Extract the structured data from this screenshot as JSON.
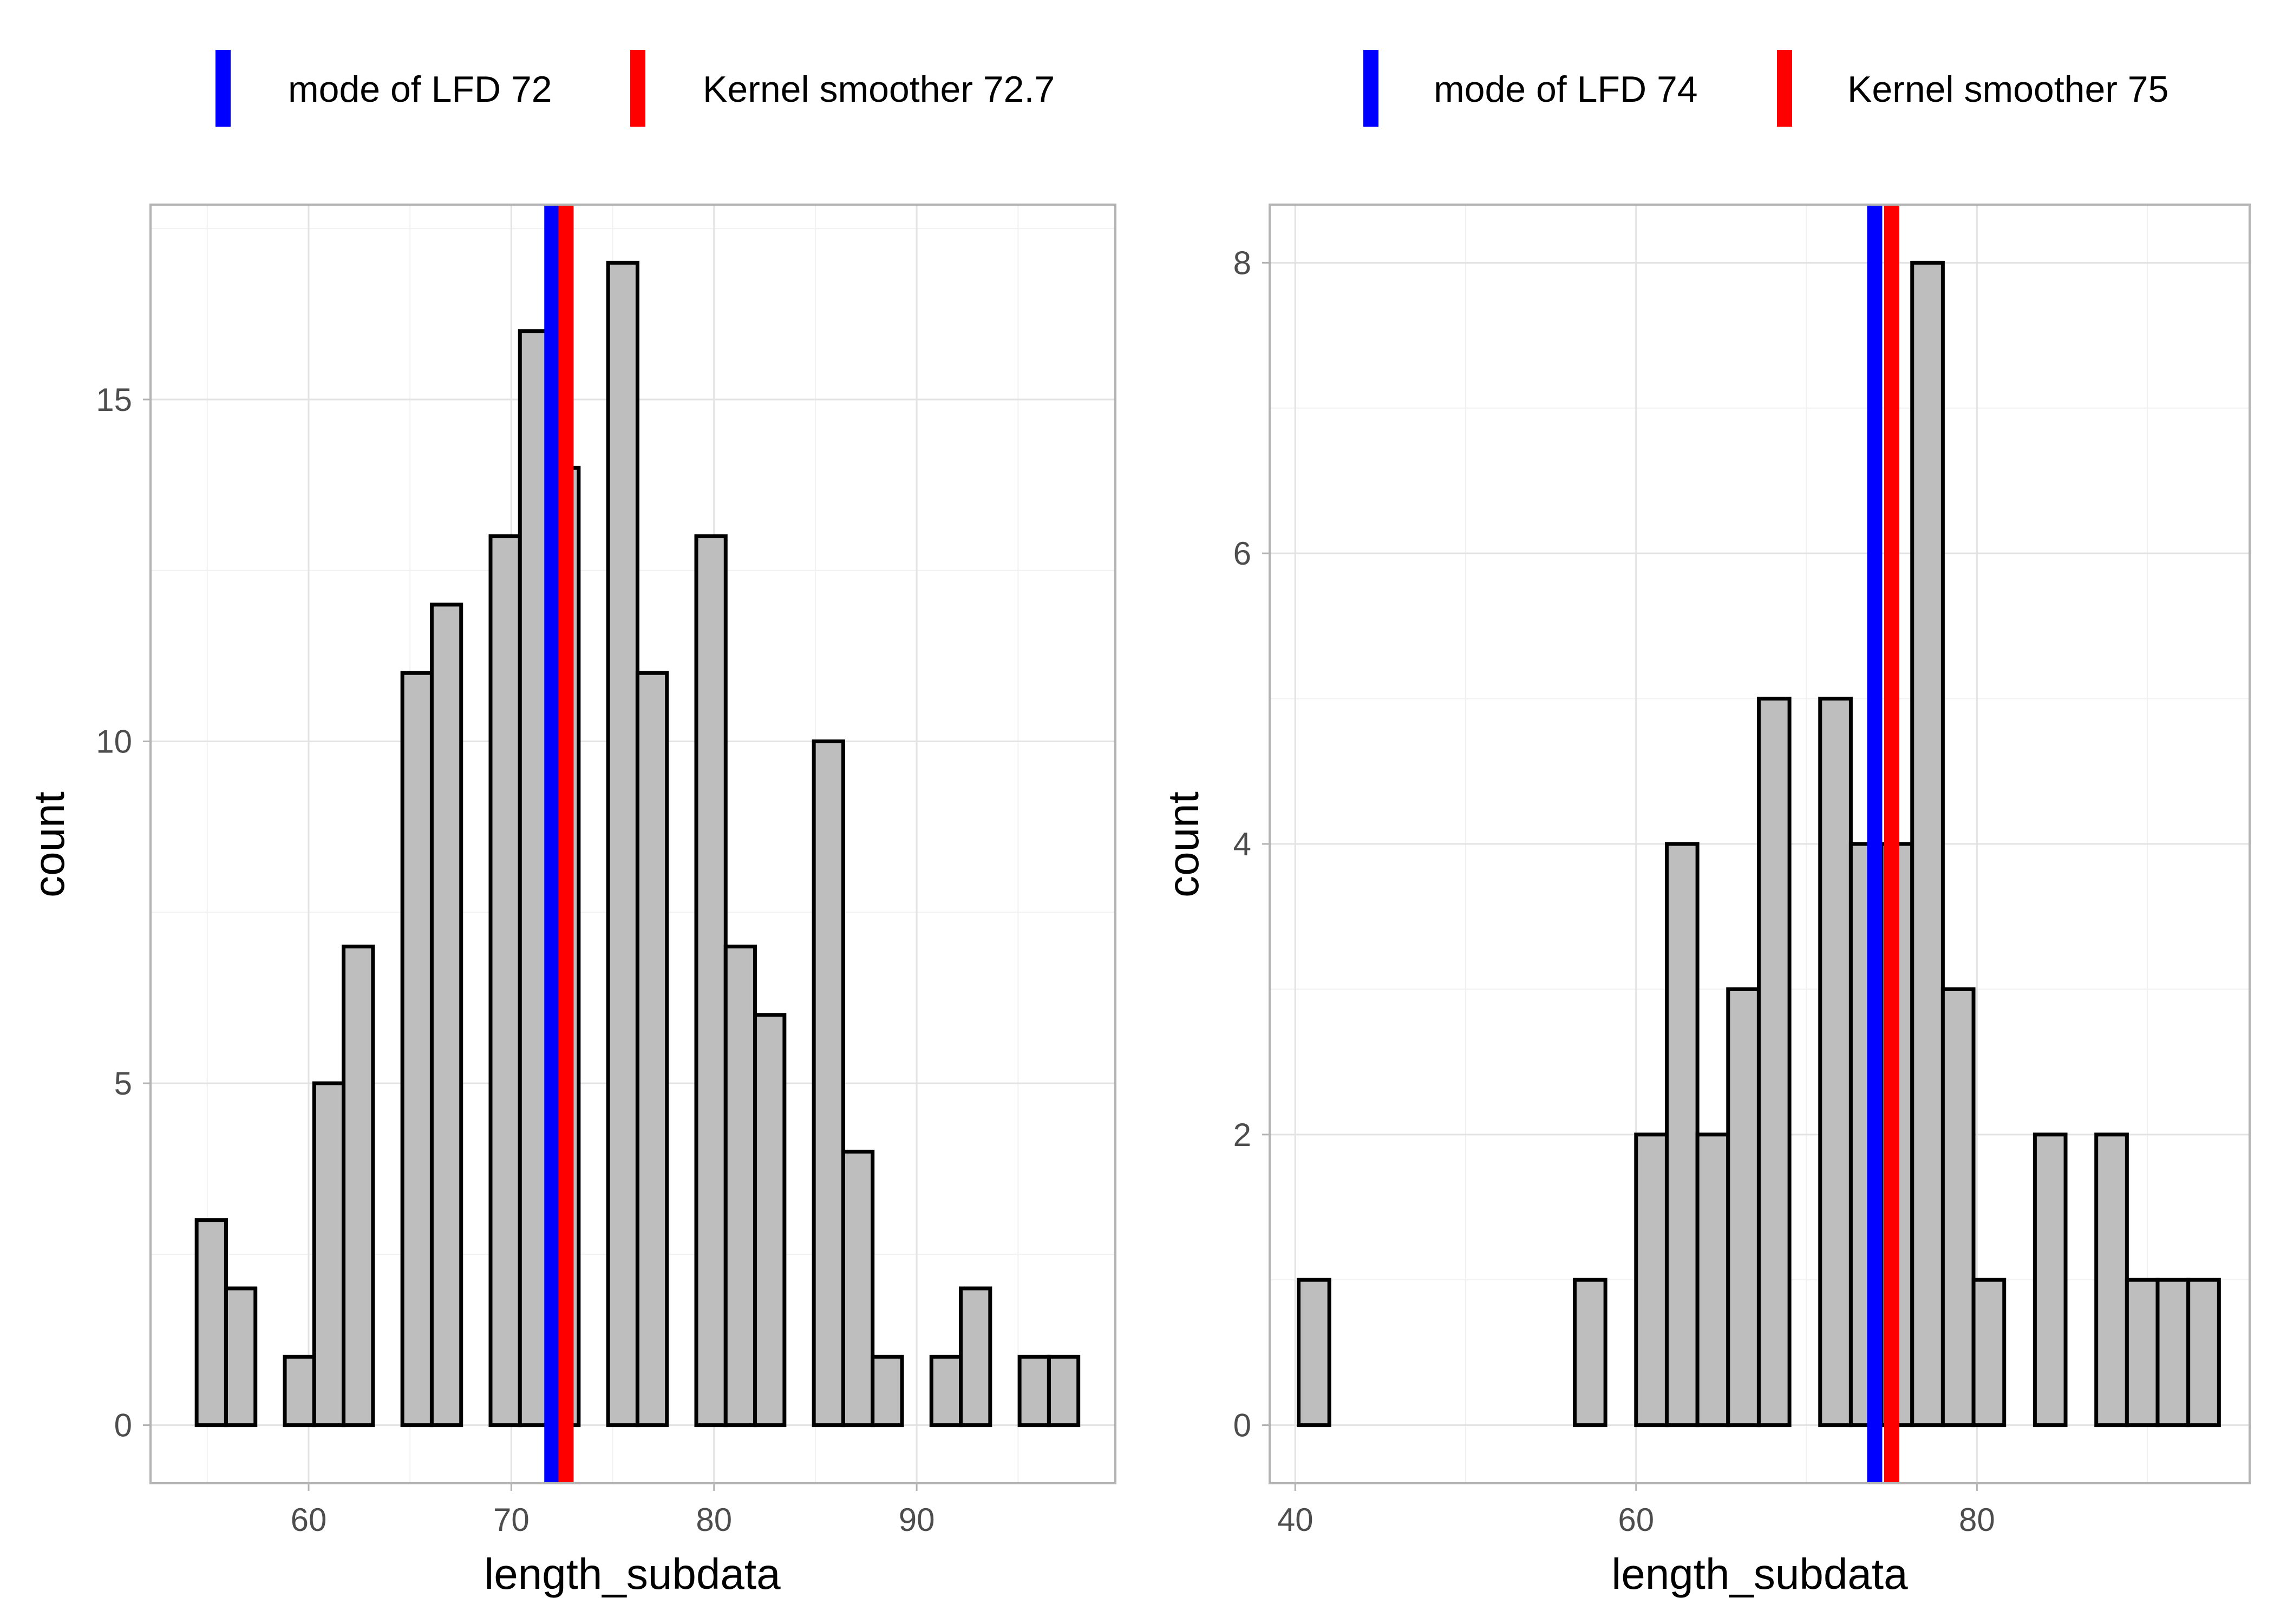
{
  "colors": {
    "bar_fill": "#bebebe",
    "bar_stroke": "#000000",
    "mode_line": "#0000ff",
    "kernel_line": "#ff0000",
    "grid": "#e3e3e3",
    "panel_border": "#b3b3b3"
  },
  "chart_data": [
    {
      "type": "bar",
      "subtype": "histogram",
      "title": "",
      "xlabel": "length_subdata",
      "ylabel": "count",
      "xlim": [
        52.2,
        99.8
      ],
      "ylim": [
        -0.85,
        17.85
      ],
      "xticks": [
        60,
        70,
        80,
        90
      ],
      "xtick_labels": [
        "60",
        "70",
        "80",
        "90"
      ],
      "yticks": [
        0,
        5,
        10,
        15
      ],
      "ytick_labels": [
        "0",
        "5",
        "10",
        "15"
      ],
      "minor_x": [
        55,
        65,
        75,
        85,
        95
      ],
      "minor_y": [
        2.5,
        7.5,
        12.5,
        17.5
      ],
      "bin_width": 1.45,
      "x": [
        55.2,
        56.65,
        58.1,
        59.55,
        61.0,
        62.45,
        63.9,
        65.35,
        66.8,
        68.25,
        69.7,
        71.15,
        72.6,
        74.05,
        75.5,
        76.95,
        78.4,
        79.85,
        81.3,
        82.75,
        84.2,
        85.65,
        87.1,
        88.55,
        90.0,
        91.45,
        92.9,
        94.35,
        95.8,
        97.25
      ],
      "counts": [
        3,
        2,
        0,
        1,
        5,
        7,
        0,
        11,
        12,
        0,
        13,
        16,
        14,
        0,
        17,
        11,
        0,
        13,
        7,
        6,
        0,
        10,
        4,
        1,
        0,
        1,
        2,
        0,
        1,
        1
      ],
      "vlines": [
        {
          "name": "mode of LFD",
          "x": 72.0,
          "color_key": "mode_line"
        },
        {
          "name": "Kernel smoother",
          "x": 72.7,
          "color_key": "kernel_line"
        }
      ],
      "legend": {
        "position": "top",
        "entries": [
          {
            "label": "mode of LFD 72",
            "color_key": "mode_line"
          },
          {
            "label": "Kernel smoother 72.7",
            "color_key": "kernel_line"
          }
        ]
      }
    },
    {
      "type": "bar",
      "subtype": "histogram",
      "title": "",
      "xlabel": "length_subdata",
      "ylabel": "count",
      "xlim": [
        38.5,
        96.0
      ],
      "ylim": [
        -0.4,
        8.4
      ],
      "xticks": [
        40,
        60,
        80
      ],
      "xtick_labels": [
        "40",
        "60",
        "80"
      ],
      "yticks": [
        0,
        2,
        4,
        6,
        8
      ],
      "ytick_labels": [
        "0",
        "2",
        "4",
        "6",
        "8"
      ],
      "minor_x": [
        50,
        70,
        90
      ],
      "minor_y": [
        1,
        3,
        5,
        7
      ],
      "bin_width": 1.8,
      "x": [
        41.1,
        42.9,
        44.7,
        46.5,
        48.3,
        50.1,
        51.9,
        53.7,
        55.5,
        57.3,
        59.1,
        60.9,
        62.7,
        64.5,
        66.3,
        68.1,
        69.9,
        71.7,
        73.5,
        75.3,
        77.1,
        78.9,
        80.7,
        82.5,
        84.3,
        86.1,
        87.9,
        89.7,
        91.5,
        93.3
      ],
      "counts": [
        1,
        0,
        0,
        0,
        0,
        0,
        0,
        0,
        0,
        1,
        0,
        2,
        4,
        2,
        3,
        5,
        0,
        5,
        4,
        4,
        8,
        3,
        1,
        0,
        2,
        0,
        2,
        1,
        1,
        1
      ],
      "vlines": [
        {
          "name": "mode of LFD",
          "x": 74.0,
          "color_key": "mode_line"
        },
        {
          "name": "Kernel smoother",
          "x": 75.0,
          "color_key": "kernel_line"
        }
      ],
      "legend": {
        "position": "top",
        "entries": [
          {
            "label": "mode of LFD 74",
            "color_key": "mode_line"
          },
          {
            "label": "Kernel smoother 75",
            "color_key": "kernel_line"
          }
        ]
      }
    }
  ]
}
